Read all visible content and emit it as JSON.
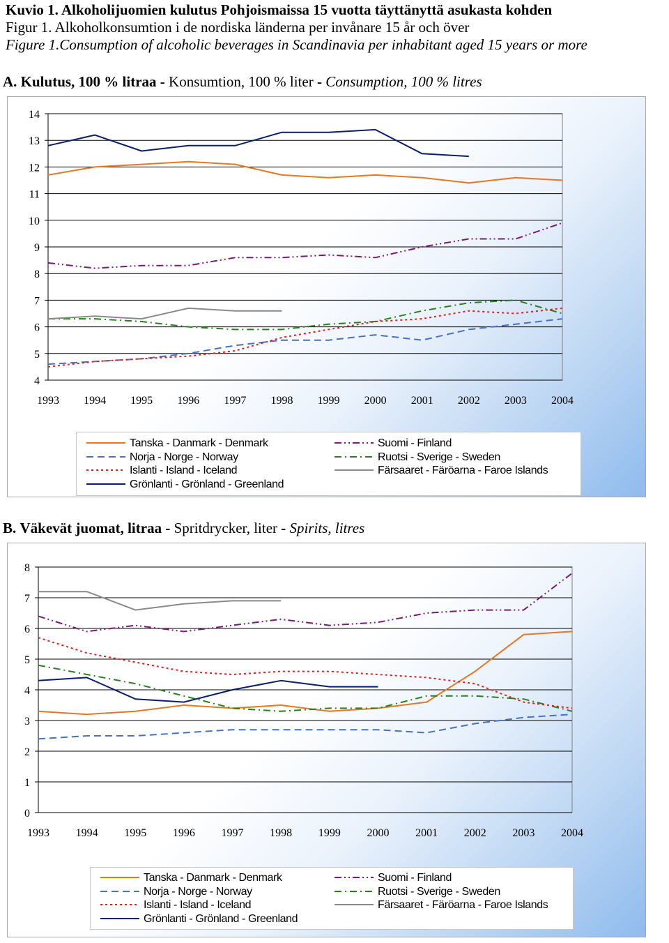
{
  "header": {
    "title_fi": "Kuvio 1. Alkoholijuomien kulutus Pohjoismaissa 15 vuotta täyttänyttä asukasta kohden",
    "title_sv": "Figur 1. Alkoholkonsumtion i de nordiska länderna per invånare 15 år och över",
    "title_en": "Figure 1.Consumption of alcoholic beverages in Scandinavia per inhabitant aged 15 years or more"
  },
  "colors": {
    "denmark": "#E87722",
    "norway": "#4472C4",
    "iceland": "#E0201B",
    "greenland": "#0A1E6E",
    "finland": "#7B1A79",
    "sweden": "#2A7F1F",
    "faroe": "#8A8A8A"
  },
  "legend": [
    {
      "key": "denmark",
      "label": "Tanska - Danmark - Denmark",
      "dash": "solid"
    },
    {
      "key": "finland",
      "label": "Suomi - Finland",
      "dash": "dashdotdot"
    },
    {
      "key": "norway",
      "label": "Norja - Norge - Norway",
      "dash": "dashed"
    },
    {
      "key": "sweden",
      "label": "Ruotsi - Sverige - Sweden",
      "dash": "dashdot"
    },
    {
      "key": "iceland",
      "label": "Islanti - Island - Iceland",
      "dash": "dotted"
    },
    {
      "key": "faroe",
      "label": "Färsaaret - Färöarna - Faroe Islands",
      "dash": "solid"
    },
    {
      "key": "greenland",
      "label": "Grönlanti - Grönland - Greenland",
      "dash": "solid"
    }
  ],
  "chartA": {
    "prefix": "A.",
    "title_fi": "Kulutus, 100 % litraa",
    "sep1": " - ",
    "title_sv": "Konsumtion, 100 % liter",
    "sep2": " - ",
    "title_en": "Consumption, 100 % litres"
  },
  "chartB": {
    "prefix": "B.",
    "title_fi": "Väkevät juomat, litraa",
    "sep1": " - ",
    "title_sv": "Spritdrycker, liter",
    "sep2": " - ",
    "title_en": "Spirits, litres"
  },
  "chart_data": [
    {
      "type": "line",
      "title": "A. Kulutus, 100 % litraa - Konsumtion, 100 % liter - Consumption, 100 % litres",
      "x": [
        "1993",
        "1994",
        "1995",
        "1996",
        "1997",
        "1998",
        "1999",
        "2000",
        "2001",
        "2002",
        "2003",
        "2004"
      ],
      "ylim": [
        4,
        14
      ],
      "yticks": [
        4,
        5,
        6,
        7,
        8,
        9,
        10,
        11,
        12,
        13,
        14
      ],
      "grid": true,
      "legend_position": "bottom",
      "series": [
        {
          "key": "denmark",
          "name": "Tanska - Danmark - Denmark",
          "values": [
            11.7,
            12.0,
            12.1,
            12.2,
            12.1,
            11.7,
            11.6,
            11.7,
            11.6,
            11.4,
            11.6,
            11.5
          ]
        },
        {
          "key": "finland",
          "name": "Suomi - Finland",
          "values": [
            8.4,
            8.2,
            8.3,
            8.3,
            8.6,
            8.6,
            8.7,
            8.6,
            9.0,
            9.3,
            9.3,
            9.9
          ]
        },
        {
          "key": "norway",
          "name": "Norja - Norge - Norway",
          "values": [
            4.6,
            4.7,
            4.8,
            5.0,
            5.3,
            5.5,
            5.5,
            5.7,
            5.5,
            5.9,
            6.1,
            6.3
          ]
        },
        {
          "key": "sweden",
          "name": "Ruotsi - Sverige - Sweden",
          "values": [
            6.3,
            6.3,
            6.2,
            6.0,
            5.9,
            5.9,
            6.1,
            6.2,
            6.6,
            6.9,
            7.0,
            6.5
          ]
        },
        {
          "key": "iceland",
          "name": "Islanti - Island - Iceland",
          "values": [
            4.5,
            4.7,
            4.8,
            4.9,
            5.1,
            5.6,
            5.9,
            6.2,
            6.3,
            6.6,
            6.5,
            6.7
          ]
        },
        {
          "key": "faroe",
          "name": "Färsaaret - Färöarna - Faroe Islands",
          "values": [
            6.3,
            6.4,
            6.3,
            6.7,
            6.6,
            6.6,
            null,
            null,
            null,
            null,
            null,
            null
          ]
        },
        {
          "key": "greenland",
          "name": "Grönlanti - Grönland - Greenland",
          "values": [
            12.8,
            13.2,
            12.6,
            12.8,
            12.8,
            13.3,
            13.3,
            13.4,
            12.5,
            12.4,
            null,
            null
          ]
        }
      ]
    },
    {
      "type": "line",
      "title": "B. Väkevät juomat, litraa - Spritdrycker, liter - Spirits, litres",
      "x": [
        "1993",
        "1994",
        "1995",
        "1996",
        "1997",
        "1998",
        "1999",
        "2000",
        "2001",
        "2002",
        "2003",
        "2004"
      ],
      "ylim": [
        0,
        8
      ],
      "yticks": [
        0,
        1,
        2,
        3,
        4,
        5,
        6,
        7,
        8
      ],
      "grid": true,
      "legend_position": "bottom",
      "series": [
        {
          "key": "denmark",
          "name": "Tanska - Danmark - Denmark",
          "values": [
            3.3,
            3.2,
            3.3,
            3.5,
            3.4,
            3.5,
            3.3,
            3.4,
            3.6,
            4.6,
            5.8,
            5.9
          ]
        },
        {
          "key": "finland",
          "name": "Suomi - Finland",
          "values": [
            6.4,
            5.9,
            6.1,
            5.9,
            6.1,
            6.3,
            6.1,
            6.2,
            6.5,
            6.6,
            6.6,
            7.8
          ]
        },
        {
          "key": "norway",
          "name": "Norja - Norge - Norway",
          "values": [
            2.4,
            2.5,
            2.5,
            2.6,
            2.7,
            2.7,
            2.7,
            2.7,
            2.6,
            2.9,
            3.1,
            3.2
          ]
        },
        {
          "key": "sweden",
          "name": "Ruotsi - Sverige - Sweden",
          "values": [
            4.8,
            4.5,
            4.2,
            3.8,
            3.4,
            3.3,
            3.4,
            3.4,
            3.8,
            3.8,
            3.7,
            3.3
          ]
        },
        {
          "key": "iceland",
          "name": "Islanti - Island - Iceland",
          "values": [
            5.7,
            5.2,
            4.9,
            4.6,
            4.5,
            4.6,
            4.6,
            4.5,
            4.4,
            4.2,
            3.6,
            3.4
          ]
        },
        {
          "key": "faroe",
          "name": "Färsaaret - Färöarna - Faroe Islands",
          "values": [
            7.2,
            7.2,
            6.6,
            6.8,
            6.9,
            6.9,
            null,
            null,
            null,
            null,
            null,
            null
          ]
        },
        {
          "key": "greenland",
          "name": "Grönlanti - Grönland - Greenland",
          "values": [
            4.3,
            4.4,
            3.7,
            3.6,
            4.0,
            4.3,
            4.1,
            4.1,
            null,
            null,
            null,
            null
          ]
        }
      ]
    }
  ]
}
